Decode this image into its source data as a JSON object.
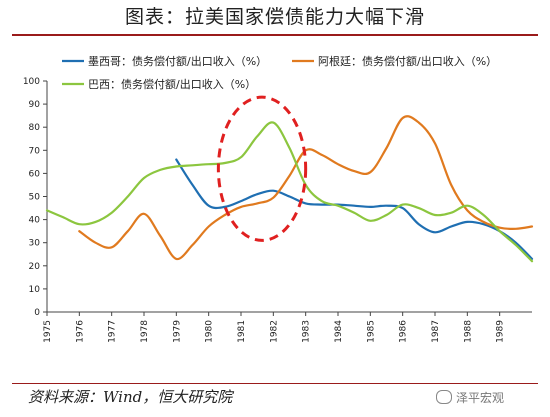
{
  "title": "图表：拉美国家偿债能力大幅下滑",
  "source": "资料来源：Wind，恒大研究院",
  "watermark": "泽平宏观",
  "colors": {
    "mexico": "#1f6fb2",
    "argentina": "#e07a1f",
    "brazil": "#8cc63f",
    "highlight": "#e02020",
    "axis": "#444444"
  },
  "chart_data": {
    "type": "line",
    "title": "",
    "xlabel": "",
    "ylabel": "",
    "ylim": [
      0,
      100
    ],
    "yticks": [
      0,
      10,
      20,
      30,
      40,
      50,
      60,
      70,
      80,
      90,
      100
    ],
    "xlim": [
      1975,
      1990
    ],
    "xticks": [
      "1975",
      "1976",
      "1977",
      "1978",
      "1979",
      "1980",
      "1981",
      "1982",
      "1983",
      "1984",
      "1985",
      "1986",
      "1987",
      "1988",
      "1989"
    ],
    "grid": false,
    "legend_position": "top",
    "series": [
      {
        "name": "墨西哥：债务偿付额/出口收入（%）",
        "color_key": "mexico",
        "x": [
          1979.0,
          1979.5,
          1980.0,
          1980.5,
          1981.0,
          1981.5,
          1982.0,
          1982.5,
          1983.0,
          1983.5,
          1984.0,
          1984.5,
          1985.0,
          1985.5,
          1986.0,
          1986.5,
          1987.0,
          1987.5,
          1988.0,
          1988.5,
          1989.0,
          1989.5,
          1990.0
        ],
        "y": [
          66,
          55,
          46,
          45.5,
          48,
          51,
          52.5,
          50,
          47,
          46.5,
          46.5,
          46,
          45.5,
          46,
          45,
          38,
          34.5,
          37,
          39,
          38,
          35,
          30,
          23
        ]
      },
      {
        "name": "阿根廷：债务偿付额/出口收入（%）",
        "color_key": "argentina",
        "x": [
          1976.0,
          1976.5,
          1977.0,
          1977.5,
          1978.0,
          1978.5,
          1979.0,
          1979.5,
          1980.0,
          1980.5,
          1981.0,
          1981.5,
          1982.0,
          1982.5,
          1983.0,
          1983.5,
          1984.0,
          1984.5,
          1985.0,
          1985.5,
          1986.0,
          1986.5,
          1987.0,
          1987.5,
          1988.0,
          1988.5,
          1989.0,
          1989.5,
          1990.0
        ],
        "y": [
          35,
          30,
          28,
          35,
          42.5,
          33,
          23,
          29,
          37,
          42,
          45.5,
          47,
          49.5,
          59,
          70,
          68,
          64,
          61,
          60.5,
          71,
          84,
          82,
          73,
          55,
          44,
          39,
          36.5,
          36,
          37
        ]
      },
      {
        "name": "巴西：债务偿付额/出口收入（%）",
        "color_key": "brazil",
        "x": [
          1975.0,
          1975.5,
          1976.0,
          1976.5,
          1977.0,
          1977.5,
          1978.0,
          1978.5,
          1979.0,
          1979.5,
          1980.0,
          1980.5,
          1981.0,
          1981.5,
          1982.0,
          1982.5,
          1983.0,
          1983.5,
          1984.0,
          1984.5,
          1985.0,
          1985.5,
          1986.0,
          1986.5,
          1987.0,
          1987.5,
          1988.0,
          1988.5,
          1989.0,
          1989.5,
          1990.0
        ],
        "y": [
          44,
          41,
          38,
          39,
          43,
          50,
          58,
          61.5,
          63,
          63.5,
          64,
          64.5,
          67,
          76,
          82,
          71,
          55,
          48,
          46,
          43,
          39.5,
          42,
          46.5,
          45,
          42,
          43,
          46,
          42,
          35,
          29,
          22
        ]
      }
    ],
    "annotations": [
      {
        "type": "ellipse",
        "style": "dashed",
        "color_key": "highlight",
        "x_center": 1981.65,
        "y_center": 62,
        "x_radius": 1.35,
        "y_radius": 31
      }
    ]
  }
}
